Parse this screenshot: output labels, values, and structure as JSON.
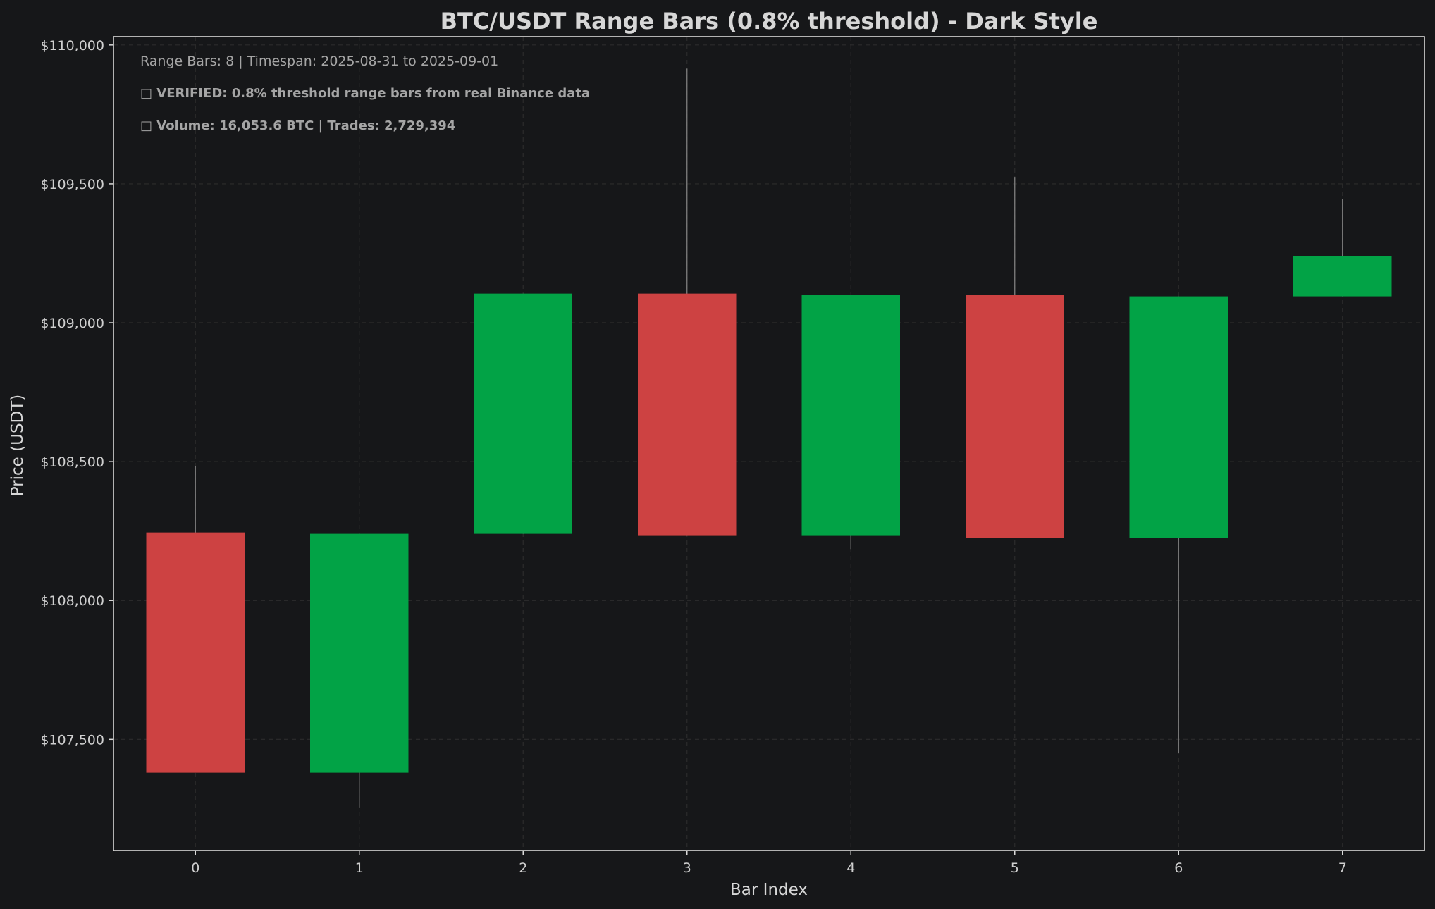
{
  "chart_data": {
    "type": "candlestick",
    "title": "BTC/USDT Range Bars (0.8% threshold) - Dark Style",
    "xlabel": "Bar Index",
    "ylabel": "Price (USDT)",
    "ylim": [
      107100,
      110030
    ],
    "xlim": [
      -0.5,
      7.5
    ],
    "y_ticks": [
      107500,
      108000,
      108500,
      109000,
      109500,
      110000
    ],
    "y_tick_labels": [
      "$107,500",
      "$108,000",
      "$108,500",
      "$109,000",
      "$109,500",
      "$110,000"
    ],
    "x_ticks": [
      0,
      1,
      2,
      3,
      4,
      5,
      6,
      7
    ],
    "x_tick_labels": [
      "0",
      "1",
      "2",
      "3",
      "4",
      "5",
      "6",
      "7"
    ],
    "grid": true,
    "annotations": {
      "info": "Range Bars: 8 | Timespan: 2025-08-31 to 2025-09-01",
      "verified": "□ VERIFIED: 0.8% threshold range bars from real Binance data",
      "volume": "□ Volume: 16,053.6 BTC | Trades: 2,729,394"
    },
    "bars": [
      {
        "index": 0,
        "open": 108245,
        "high": 108485,
        "low": 107385,
        "close": 107380
      },
      {
        "index": 1,
        "open": 107380,
        "high": 108240,
        "low": 107255,
        "close": 108240
      },
      {
        "index": 2,
        "open": 108240,
        "high": 109105,
        "low": 108240,
        "close": 109105
      },
      {
        "index": 3,
        "open": 109105,
        "high": 109915,
        "low": 108235,
        "close": 108235
      },
      {
        "index": 4,
        "open": 108235,
        "high": 109100,
        "low": 108185,
        "close": 109100
      },
      {
        "index": 5,
        "open": 109100,
        "high": 109525,
        "low": 108225,
        "close": 108225
      },
      {
        "index": 6,
        "open": 108225,
        "high": 109095,
        "low": 107450,
        "close": 109095
      },
      {
        "index": 7,
        "open": 109095,
        "high": 109445,
        "low": 109095,
        "close": 109240
      }
    ]
  },
  "colors": {
    "background": "#161719",
    "up": "#02a346",
    "down": "#cd4242",
    "wick": "#7f7f7f",
    "text": "#d7d7d7",
    "tick_text": "#cfcfcf",
    "annotation": "#a5a5a5",
    "grid": "#2c2c2c",
    "axis": "#d9d9d9"
  }
}
